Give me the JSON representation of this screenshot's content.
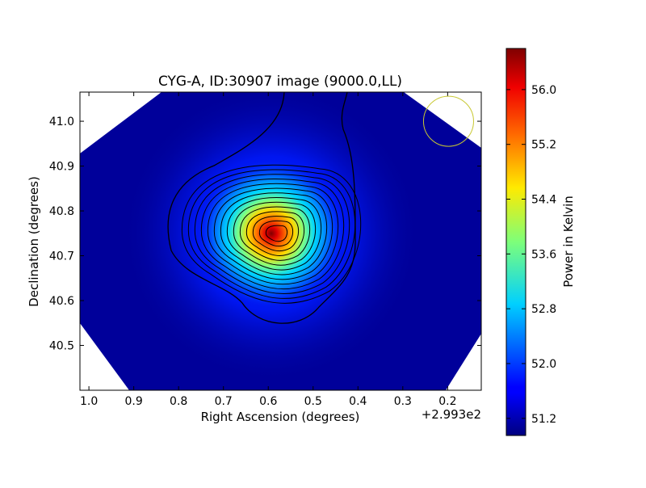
{
  "chart_data": {
    "type": "heatmap",
    "title": "CYG-A, ID:30907 image (9000.0,LL)",
    "xlabel": "Right Ascension (degrees)",
    "ylabel": "Declination (degrees)",
    "x_offset_label": "+2.993e2",
    "xlim": [
      1.02,
      0.125
    ],
    "ylim": [
      40.4,
      41.065
    ],
    "x_ticks": [
      1.0,
      0.9,
      0.8,
      0.7,
      0.6,
      0.5,
      0.4,
      0.3,
      0.2
    ],
    "x_tick_labels": [
      "1.0",
      "0.9",
      "0.8",
      "0.7",
      "0.6",
      "0.5",
      "0.4",
      "0.3",
      "0.2"
    ],
    "y_ticks": [
      40.5,
      40.6,
      40.7,
      40.8,
      40.9,
      41.0
    ],
    "y_tick_labels": [
      "40.5",
      "40.6",
      "40.7",
      "40.8",
      "40.9",
      "41.0"
    ],
    "colorbar": {
      "label": "Power in Kelvin",
      "range": [
        50.95,
        56.6
      ],
      "ticks": [
        51.2,
        52.0,
        52.8,
        53.6,
        54.4,
        55.2,
        56.0
      ],
      "tick_labels": [
        "51.2",
        "52.0",
        "52.8",
        "53.6",
        "54.4",
        "55.2",
        "56.0"
      ],
      "colormap": "jet"
    },
    "peak": {
      "ra": 0.58,
      "dec": 40.75,
      "value": 56.5
    },
    "contours": 14,
    "beam": {
      "ra": 0.198,
      "dec": 41.0,
      "color": "#c8c832"
    }
  }
}
